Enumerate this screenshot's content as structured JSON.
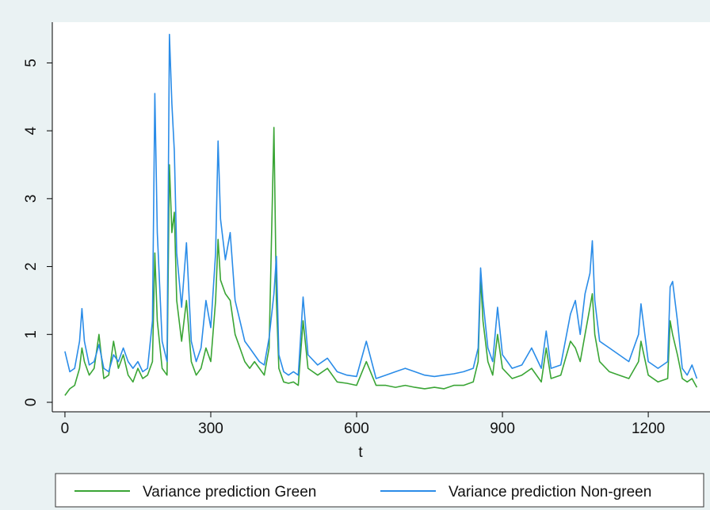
{
  "chart_data": {
    "type": "line",
    "x": [
      0,
      10,
      20,
      30,
      35,
      40,
      50,
      60,
      70,
      80,
      90,
      100,
      110,
      120,
      130,
      140,
      150,
      160,
      170,
      180,
      185,
      190,
      200,
      210,
      215,
      220,
      225,
      230,
      240,
      250,
      260,
      270,
      280,
      290,
      300,
      310,
      315,
      320,
      330,
      340,
      350,
      360,
      370,
      380,
      390,
      400,
      410,
      420,
      430,
      435,
      440,
      450,
      460,
      470,
      480,
      490,
      500,
      520,
      540,
      560,
      580,
      600,
      620,
      640,
      660,
      680,
      700,
      720,
      740,
      760,
      780,
      800,
      820,
      840,
      850,
      855,
      860,
      870,
      880,
      890,
      900,
      920,
      940,
      960,
      980,
      990,
      1000,
      1020,
      1040,
      1050,
      1060,
      1070,
      1080,
      1085,
      1090,
      1100,
      1120,
      1140,
      1160,
      1180,
      1185,
      1200,
      1220,
      1240,
      1245,
      1250,
      1260,
      1270,
      1280,
      1290,
      1300
    ],
    "series": [
      {
        "name": "Variance prediction Green",
        "color": "#3aa535",
        "values": [
          0.1,
          0.2,
          0.25,
          0.5,
          0.8,
          0.6,
          0.4,
          0.5,
          1.0,
          0.35,
          0.4,
          0.9,
          0.5,
          0.7,
          0.4,
          0.3,
          0.5,
          0.35,
          0.4,
          0.6,
          2.2,
          1.2,
          0.5,
          0.4,
          3.5,
          2.5,
          2.8,
          1.5,
          0.9,
          1.5,
          0.6,
          0.4,
          0.5,
          0.8,
          0.6,
          1.5,
          2.4,
          1.8,
          1.6,
          1.5,
          1.0,
          0.8,
          0.6,
          0.5,
          0.6,
          0.5,
          0.4,
          0.8,
          4.05,
          1.5,
          0.5,
          0.3,
          0.28,
          0.3,
          0.25,
          1.2,
          0.5,
          0.4,
          0.5,
          0.3,
          0.28,
          0.25,
          0.6,
          0.25,
          0.25,
          0.22,
          0.25,
          0.22,
          0.2,
          0.22,
          0.2,
          0.25,
          0.25,
          0.3,
          0.6,
          1.85,
          1.2,
          0.6,
          0.4,
          1.0,
          0.5,
          0.35,
          0.4,
          0.5,
          0.3,
          0.8,
          0.35,
          0.4,
          0.9,
          0.8,
          0.6,
          1.0,
          1.4,
          1.6,
          1.0,
          0.6,
          0.45,
          0.4,
          0.35,
          0.6,
          0.9,
          0.4,
          0.3,
          0.35,
          1.2,
          1.0,
          0.7,
          0.35,
          0.3,
          0.35,
          0.22
        ]
      },
      {
        "name": "Variance prediction Non-green",
        "color": "#2a8ce8",
        "values": [
          0.75,
          0.45,
          0.5,
          0.9,
          1.38,
          0.9,
          0.55,
          0.6,
          0.85,
          0.5,
          0.45,
          0.7,
          0.6,
          0.8,
          0.6,
          0.5,
          0.6,
          0.45,
          0.5,
          1.2,
          4.55,
          2.5,
          0.9,
          0.6,
          5.42,
          4.4,
          3.7,
          2.2,
          1.4,
          2.35,
          0.9,
          0.6,
          0.8,
          1.5,
          1.1,
          2.2,
          3.85,
          2.7,
          2.1,
          2.5,
          1.5,
          1.2,
          0.9,
          0.8,
          0.7,
          0.6,
          0.55,
          0.95,
          1.6,
          2.15,
          0.7,
          0.45,
          0.4,
          0.45,
          0.4,
          1.55,
          0.7,
          0.55,
          0.65,
          0.45,
          0.4,
          0.38,
          0.9,
          0.35,
          0.4,
          0.45,
          0.5,
          0.45,
          0.4,
          0.38,
          0.4,
          0.42,
          0.45,
          0.5,
          0.8,
          1.98,
          1.5,
          0.8,
          0.6,
          1.4,
          0.7,
          0.5,
          0.55,
          0.8,
          0.5,
          1.05,
          0.5,
          0.55,
          1.3,
          1.5,
          1.0,
          1.6,
          1.9,
          2.38,
          1.5,
          0.9,
          0.8,
          0.7,
          0.6,
          1.0,
          1.45,
          0.6,
          0.5,
          0.6,
          1.7,
          1.78,
          1.2,
          0.5,
          0.4,
          0.55,
          0.35
        ]
      }
    ],
    "x_label": "t",
    "xlim": [
      -26,
      1327
    ],
    "xticks": [
      0,
      300,
      600,
      900,
      1200
    ],
    "ylim": [
      -0.14,
      5.6
    ],
    "yticks": [
      0,
      1,
      2,
      3,
      4,
      5
    ],
    "grid": true,
    "legend": "bottom"
  }
}
